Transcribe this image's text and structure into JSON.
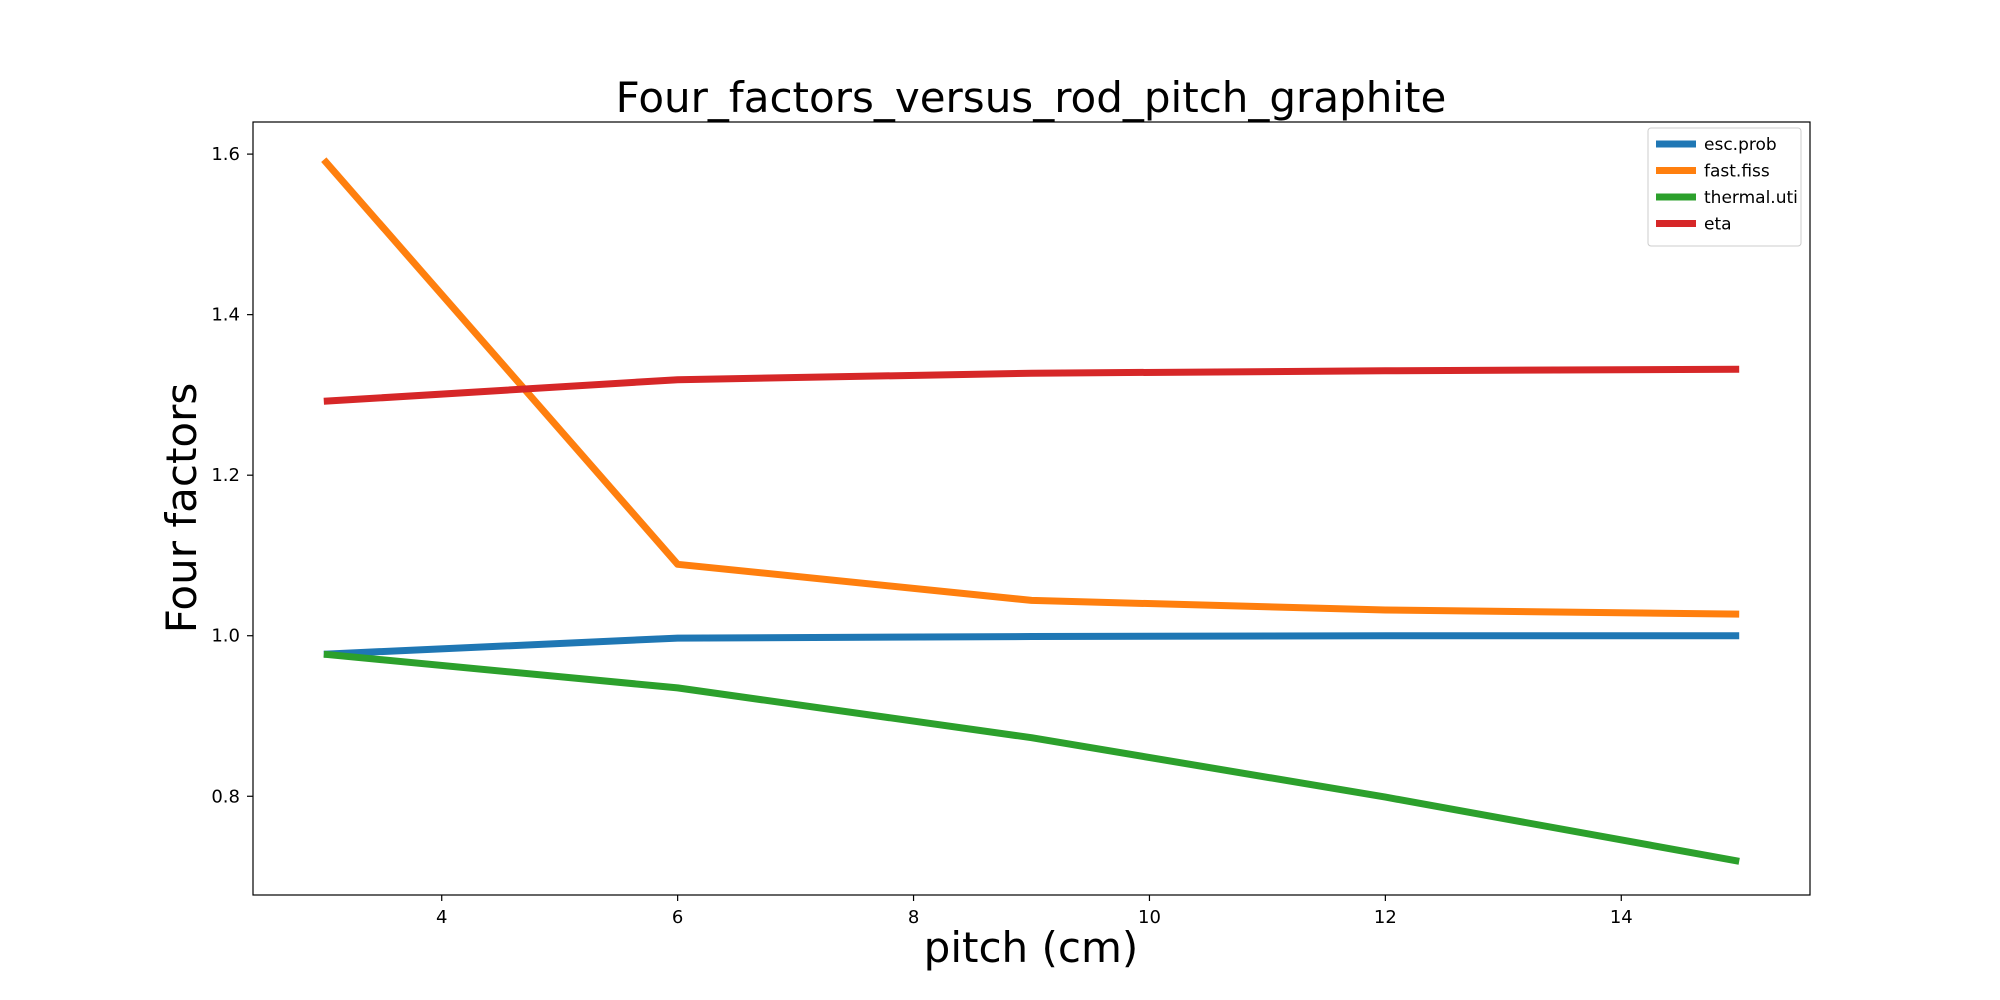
{
  "chart_data": {
    "type": "line",
    "title": "Four_factors_versus_rod_pitch_graphite",
    "xlabel": "pitch (cm)",
    "ylabel": "Four factors",
    "x": [
      3,
      6,
      9,
      12,
      15
    ],
    "xlim": [
      2.4,
      15.6
    ],
    "ylim": [
      0.677,
      1.64
    ],
    "xticks": [
      4,
      6,
      8,
      10,
      12,
      14
    ],
    "yticks": [
      0.8,
      1.0,
      1.2,
      1.4,
      1.6
    ],
    "ytick_labels": [
      "0.8",
      "1.0",
      "1.2",
      "1.4",
      "1.6"
    ],
    "grid": false,
    "legend_position": "top-right",
    "series": [
      {
        "name": "esc.prob",
        "color": "#1f77b4",
        "values": [
          0.977,
          0.997,
          0.999,
          1.0,
          1.0
        ]
      },
      {
        "name": "fast.fiss",
        "color": "#ff7f0e",
        "values": [
          1.593,
          1.089,
          1.044,
          1.032,
          1.027
        ]
      },
      {
        "name": "thermal.uti",
        "color": "#2ca02c",
        "values": [
          0.977,
          0.935,
          0.873,
          0.799,
          0.719
        ]
      },
      {
        "name": "eta",
        "color": "#d62728",
        "values": [
          1.292,
          1.319,
          1.327,
          1.33,
          1.332
        ]
      }
    ]
  }
}
